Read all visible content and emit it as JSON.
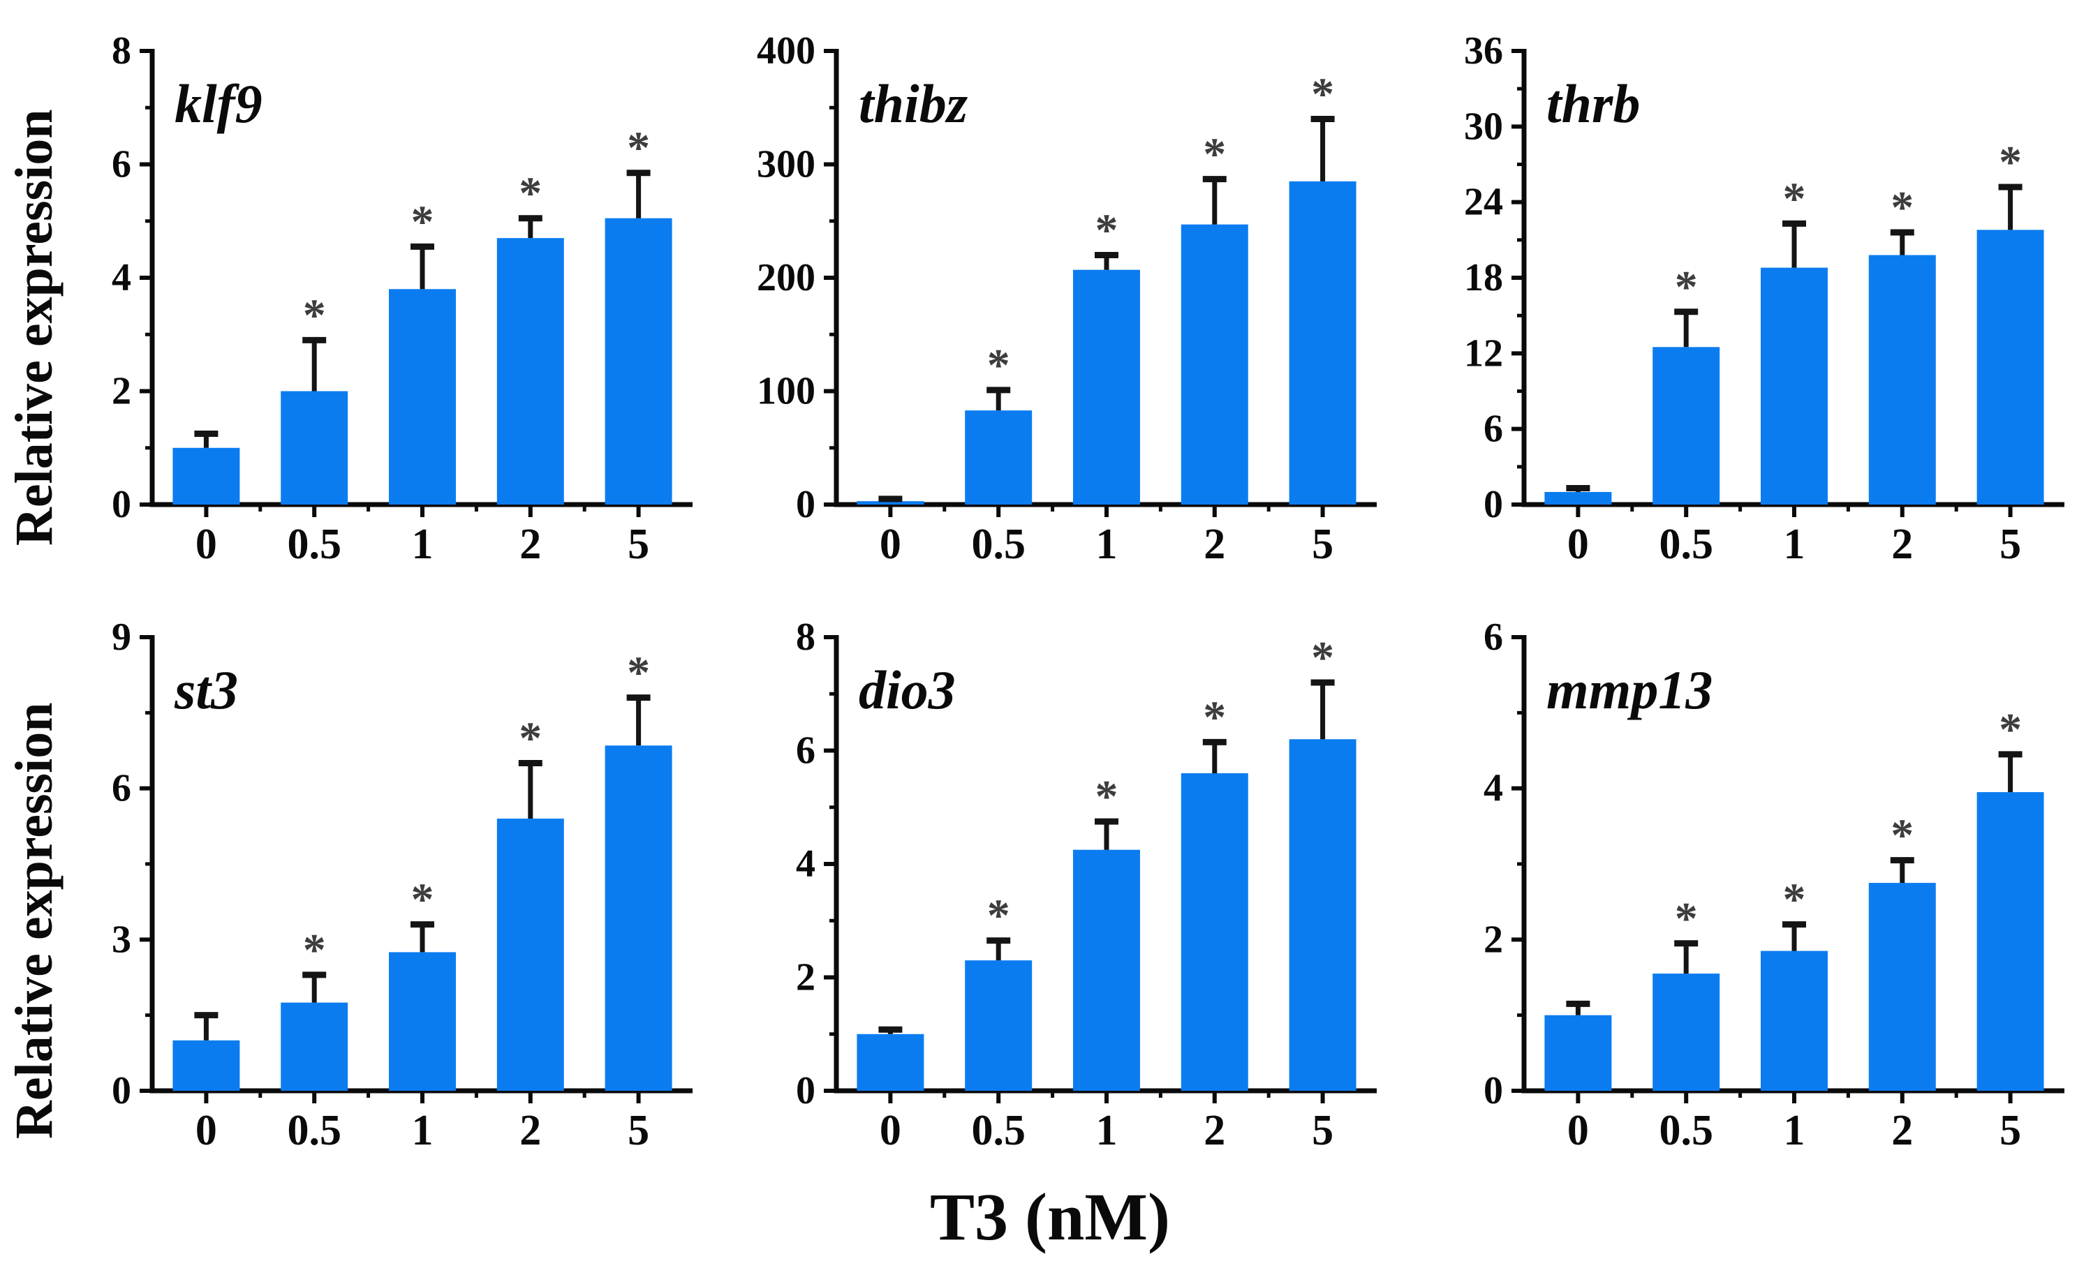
{
  "figure": {
    "y_axis_label": "Relative expression",
    "x_axis_label": "T3 (nM)",
    "significance_marker": "*",
    "colors": {
      "bar": "#0b7cf0",
      "error": "#141414",
      "asterisk": "#3d3d3d",
      "axis": "#0a0a0a",
      "text": "#0a0a0a"
    }
  },
  "chart_data": [
    {
      "type": "bar",
      "title": "klf9",
      "xlabel": "T3 (nM)",
      "ylabel": "Relative expression",
      "categories": [
        "0",
        "0.5",
        "1",
        "2",
        "5"
      ],
      "values": [
        1.0,
        2.0,
        3.8,
        4.7,
        5.05
      ],
      "errors": [
        0.25,
        0.9,
        0.75,
        0.35,
        0.8
      ],
      "significant": [
        false,
        true,
        true,
        true,
        true
      ],
      "ylim": [
        0,
        8
      ],
      "yticks": [
        0,
        2,
        4,
        6,
        8
      ],
      "grid": false,
      "legend": "none"
    },
    {
      "type": "bar",
      "title": "thibz",
      "xlabel": "T3 (nM)",
      "ylabel": "Relative expression",
      "categories": [
        "0",
        "0.5",
        "1",
        "2",
        "5"
      ],
      "values": [
        3,
        83,
        207,
        247,
        285
      ],
      "errors": [
        2,
        18,
        13,
        40,
        55
      ],
      "significant": [
        false,
        true,
        true,
        true,
        true
      ],
      "ylim": [
        0,
        400
      ],
      "yticks": [
        0,
        100,
        200,
        300,
        400
      ],
      "grid": false,
      "legend": "none"
    },
    {
      "type": "bar",
      "title": "thrb",
      "xlabel": "T3 (nM)",
      "ylabel": "Relative expression",
      "categories": [
        "0",
        "0.5",
        "1",
        "2",
        "5"
      ],
      "values": [
        1.0,
        12.5,
        18.8,
        19.8,
        21.8
      ],
      "errors": [
        0.3,
        2.8,
        3.5,
        1.8,
        3.4
      ],
      "significant": [
        false,
        true,
        true,
        true,
        true
      ],
      "ylim": [
        0,
        36
      ],
      "yticks": [
        0,
        6,
        12,
        18,
        24,
        30,
        36
      ],
      "grid": false,
      "legend": "none"
    },
    {
      "type": "bar",
      "title": "st3",
      "xlabel": "T3 (nM)",
      "ylabel": "Relative expression",
      "categories": [
        "0",
        "0.5",
        "1",
        "2",
        "5"
      ],
      "values": [
        1.0,
        1.75,
        2.75,
        5.4,
        6.85
      ],
      "errors": [
        0.5,
        0.55,
        0.55,
        1.1,
        0.95
      ],
      "significant": [
        false,
        true,
        true,
        true,
        true
      ],
      "ylim": [
        0,
        9
      ],
      "yticks": [
        0,
        3,
        6,
        9
      ],
      "grid": false,
      "legend": "none"
    },
    {
      "type": "bar",
      "title": "dio3",
      "xlabel": "T3 (nM)",
      "ylabel": "Relative expression",
      "categories": [
        "0",
        "0.5",
        "1",
        "2",
        "5"
      ],
      "values": [
        1.0,
        2.3,
        4.25,
        5.6,
        6.2
      ],
      "errors": [
        0.08,
        0.35,
        0.5,
        0.55,
        1.0
      ],
      "significant": [
        false,
        true,
        true,
        true,
        true
      ],
      "ylim": [
        0,
        8
      ],
      "yticks": [
        0,
        2,
        4,
        6,
        8
      ],
      "grid": false,
      "legend": "none"
    },
    {
      "type": "bar",
      "title": "mmp13",
      "xlabel": "T3 (nM)",
      "ylabel": "Relative expression",
      "categories": [
        "0",
        "0.5",
        "1",
        "2",
        "5"
      ],
      "values": [
        1.0,
        1.55,
        1.85,
        2.75,
        3.95
      ],
      "errors": [
        0.15,
        0.4,
        0.35,
        0.3,
        0.5
      ],
      "significant": [
        false,
        true,
        true,
        true,
        true
      ],
      "ylim": [
        0,
        6
      ],
      "yticks": [
        0,
        2,
        4,
        6
      ],
      "grid": false,
      "legend": "none"
    }
  ]
}
